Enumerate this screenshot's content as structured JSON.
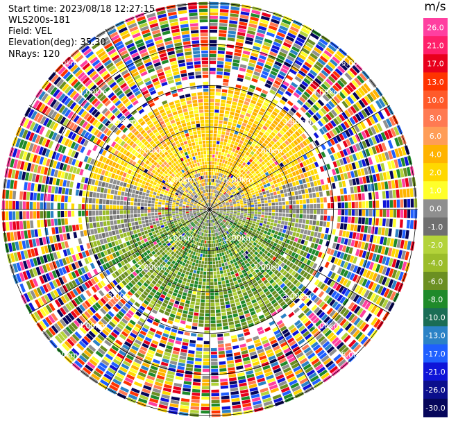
{
  "header": {
    "start_time": "Start time: 2023/08/18 12:27:15",
    "instrument": "WLS200s-181",
    "field": "Field: VEL",
    "elevation": "Elevation(deg): 35.30",
    "nrays": "NRays: 120"
  },
  "chart_data": {
    "type": "heatmap",
    "projection": "polar (PPI scan)",
    "field": "VEL",
    "units": "m/s",
    "range_rings_km": [
      1.0,
      2.0,
      3.0,
      4.0,
      5.0
    ],
    "ring_labels": [
      "1.00km",
      "2.00km",
      "3.00km",
      "4.00km",
      "5.00km"
    ],
    "colorbar": {
      "title": "m/s",
      "ticks": [
        "26.0",
        "21.0",
        "17.0",
        "13.0",
        "10.0",
        "8.0",
        "6.0",
        "4.0",
        "2.0",
        "1.0",
        "0.0",
        "-1.0",
        "-2.0",
        "-4.0",
        "-6.0",
        "-8.0",
        "-10.0",
        "-13.0",
        "-17.0",
        "-21.0",
        "-26.0",
        "-30.0"
      ],
      "colors": [
        "#ff3fa0",
        "#ff1f6a",
        "#e8001c",
        "#ff3300",
        "#ff5a2a",
        "#ff7a52",
        "#ff9d57",
        "#ffb300",
        "#ffd800",
        "#ffff2a",
        "#8f8f8f",
        "#6f6f6f",
        "#b3d33a",
        "#9bbd2a",
        "#6b8f22",
        "#1f8a2a",
        "#1a6d55",
        "#2b82c6",
        "#1f5fff",
        "#0e14d8",
        "#0b0e8c",
        "#06065a"
      ]
    },
    "pattern": {
      "near_range": "mixed yellow/orange (positive ~2 to 6 m/s) to the north, green (negative ~-2 to -6 m/s) to the south, gray near 0 along east-west",
      "far_range": "noisy multicolor speckle beyond ~3 km"
    }
  }
}
